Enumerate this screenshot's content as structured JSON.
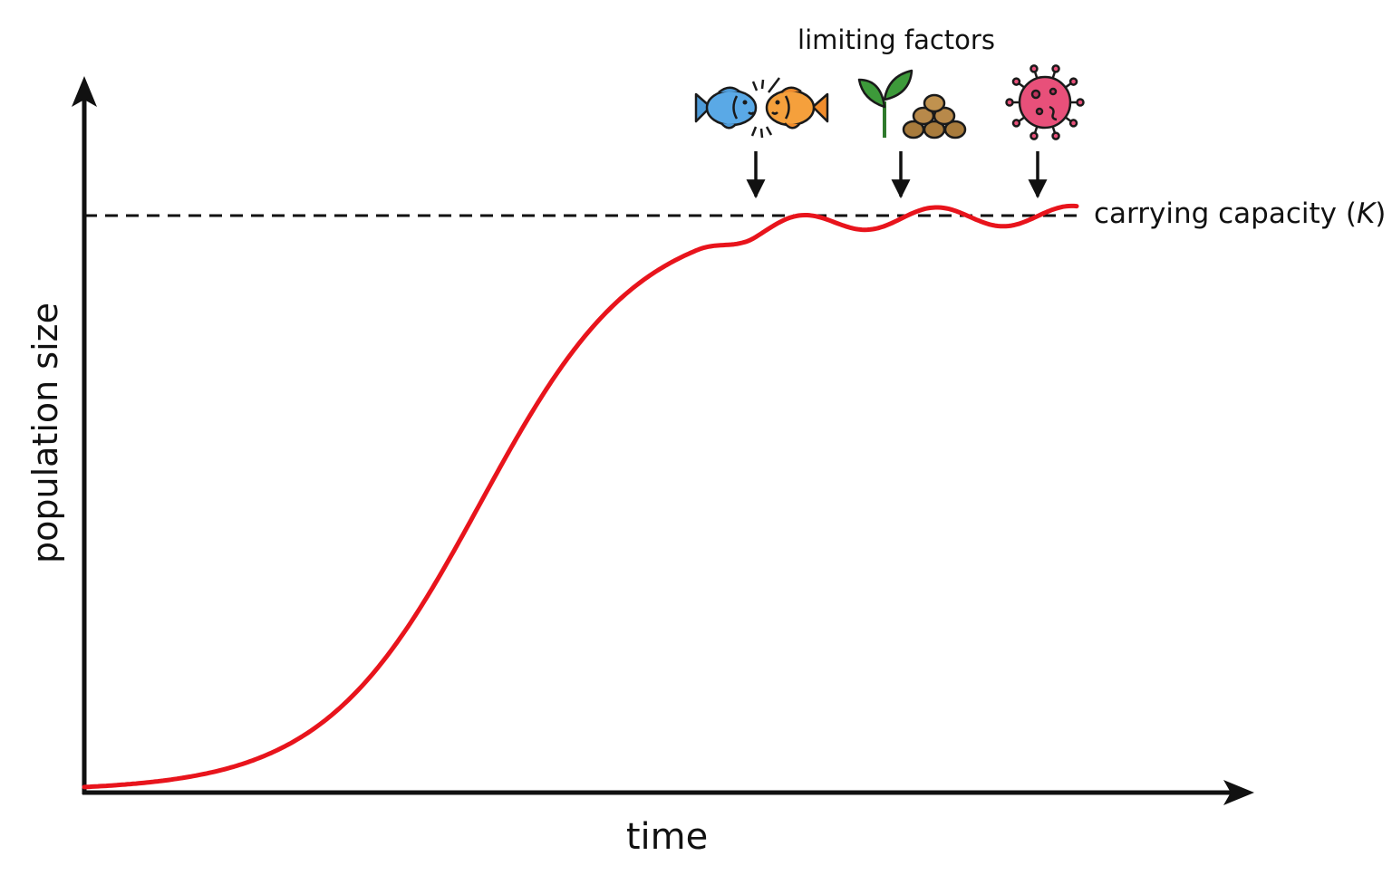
{
  "diagram": {
    "x_axis_label": "time",
    "y_axis_label": "population size",
    "carrying_capacity_label": "carrying capacity (",
    "carrying_capacity_symbol": "K",
    "carrying_capacity_close": ")",
    "limiting_factors_label": "limiting factors",
    "limiting_factor_icons": [
      "competition-fish-icon",
      "plant-food-resource-icon",
      "virus-disease-icon"
    ],
    "curve_color": "#e8141c",
    "axis_color": "#111111"
  }
}
